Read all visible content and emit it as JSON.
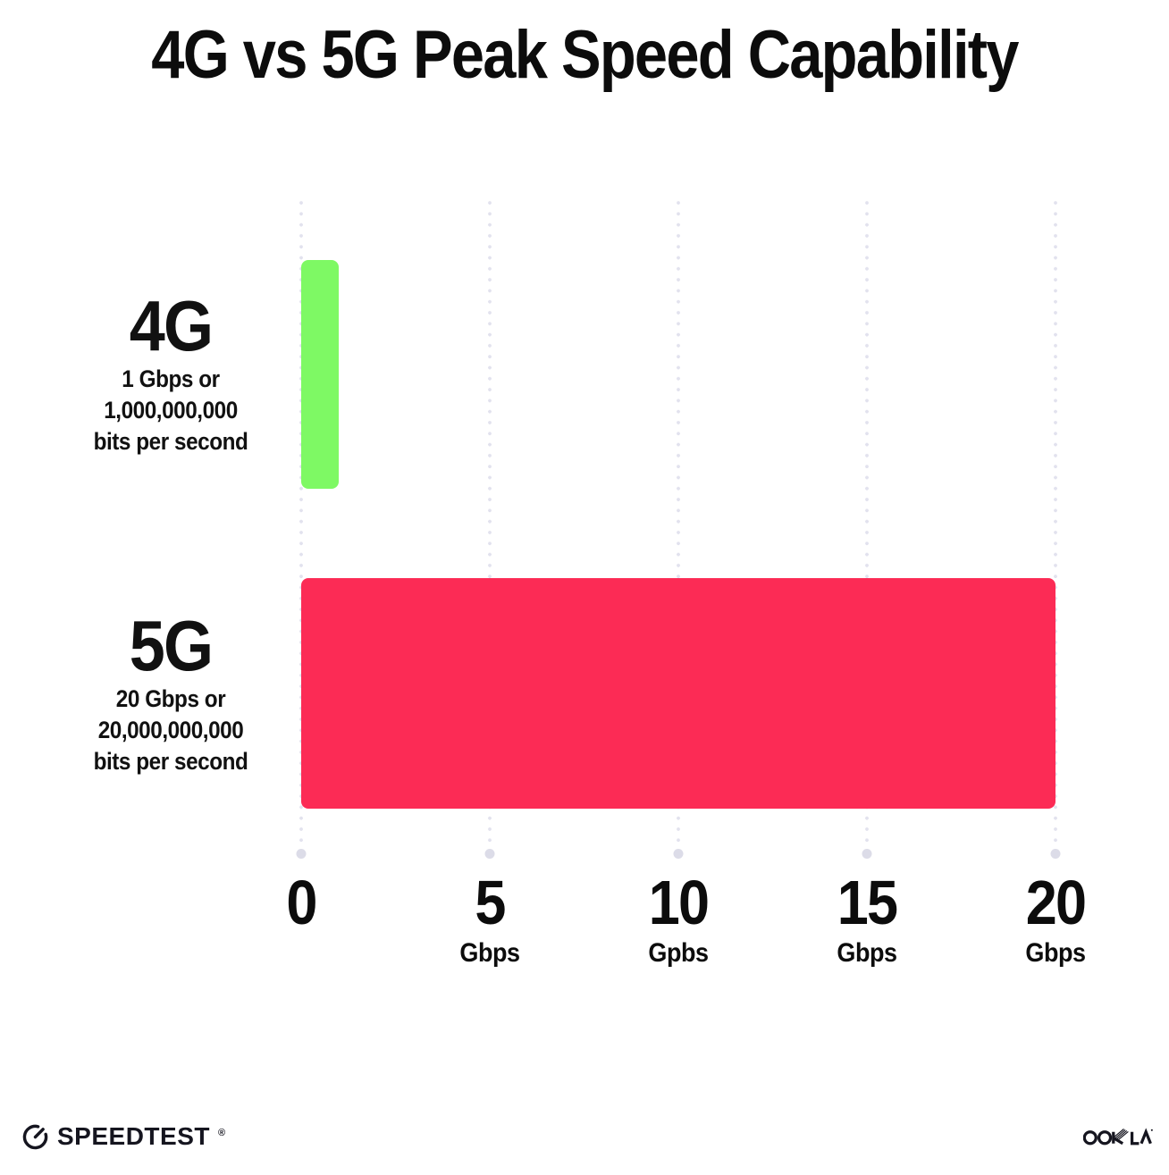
{
  "title": "4G vs 5G Peak Speed Capability",
  "chart_data": {
    "type": "bar",
    "orientation": "horizontal",
    "title": "4G vs 5G Peak Speed Capability",
    "categories": [
      "4G",
      "5G"
    ],
    "values": [
      1,
      20
    ],
    "value_unit": "Gbps",
    "xlim": [
      0,
      20
    ],
    "x_tick_values": [
      0,
      5,
      10,
      15,
      20
    ],
    "grid": "vertical-dotted",
    "legend": "none",
    "bars": [
      {
        "label": "4G",
        "sublabel_lines": [
          "1 Gbps or",
          "1,000,000,000",
          "bits per second"
        ],
        "value": 1,
        "color": "#7ef964"
      },
      {
        "label": "5G",
        "sublabel_lines": [
          "20 Gbps or",
          "20,000,000,000",
          "bits per second"
        ],
        "value": 20,
        "color": "#fc2b55"
      }
    ],
    "x_ticks": [
      {
        "value": "0",
        "unit": ""
      },
      {
        "value": "5",
        "unit": "Gbps"
      },
      {
        "value": "10",
        "unit": "Gpbs"
      },
      {
        "value": "15",
        "unit": "Gbps"
      },
      {
        "value": "20",
        "unit": "Gbps"
      }
    ]
  },
  "footer": {
    "speedtest_label": "SPEEDTEST",
    "speedtest_trademark": "®",
    "ookla_label": "OOKLA",
    "ookla_trademark": "®"
  },
  "colors": {
    "background": "#ffffff",
    "text": "#0d0d0d",
    "bar_4g": "#7ef964",
    "bar_5g": "#fc2b55",
    "gridline_dot": "#e2e2ee",
    "gridline_end_dot": "#dcdce8"
  }
}
